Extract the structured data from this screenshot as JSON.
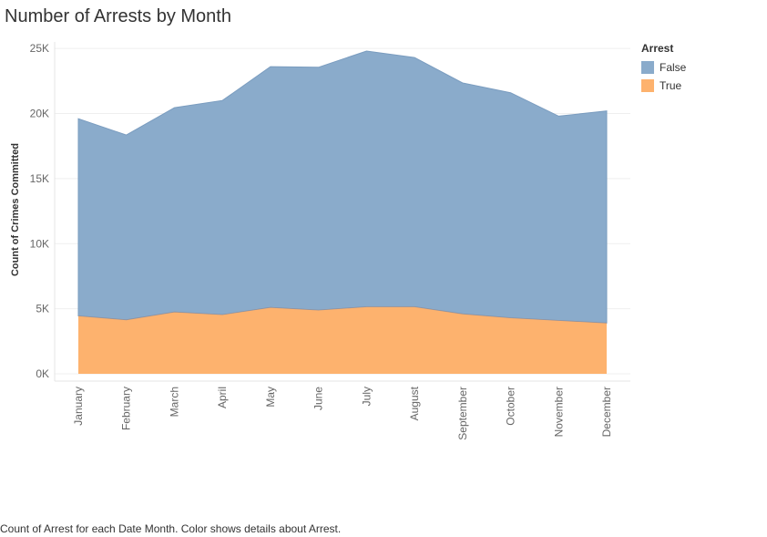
{
  "chart_data": {
    "type": "area",
    "stacked": true,
    "title": "Number of Arrests by Month",
    "ylabel": "Count of Crimes Committed",
    "xlabel": "",
    "categories": [
      "January",
      "February",
      "March",
      "April",
      "May",
      "June",
      "July",
      "August",
      "September",
      "October",
      "November",
      "December"
    ],
    "y_ticks": [
      0,
      5000,
      10000,
      15000,
      20000,
      25000
    ],
    "y_tick_labels": [
      "0K",
      "5K",
      "10K",
      "15K",
      "20K",
      "25K"
    ],
    "ylim": [
      0,
      25500
    ],
    "grid": true,
    "legend_placement": "top-right",
    "series": [
      {
        "name": "True",
        "color": "#fdb26e",
        "values": [
          4450,
          4150,
          4750,
          4550,
          5100,
          4900,
          5150,
          5150,
          4600,
          4300,
          4100,
          3900
        ]
      },
      {
        "name": "False",
        "color": "#8aabcb",
        "values": [
          15150,
          14200,
          15700,
          16450,
          18500,
          18650,
          19650,
          19150,
          17750,
          17300,
          15700,
          16300
        ]
      }
    ],
    "legend": {
      "title": "Arrest",
      "items": [
        {
          "label": "False",
          "color": "#8aabcb"
        },
        {
          "label": "True",
          "color": "#fdb26e"
        }
      ]
    },
    "caption": "Count of Arrest for each Date Month.  Color shows details about Arrest."
  }
}
